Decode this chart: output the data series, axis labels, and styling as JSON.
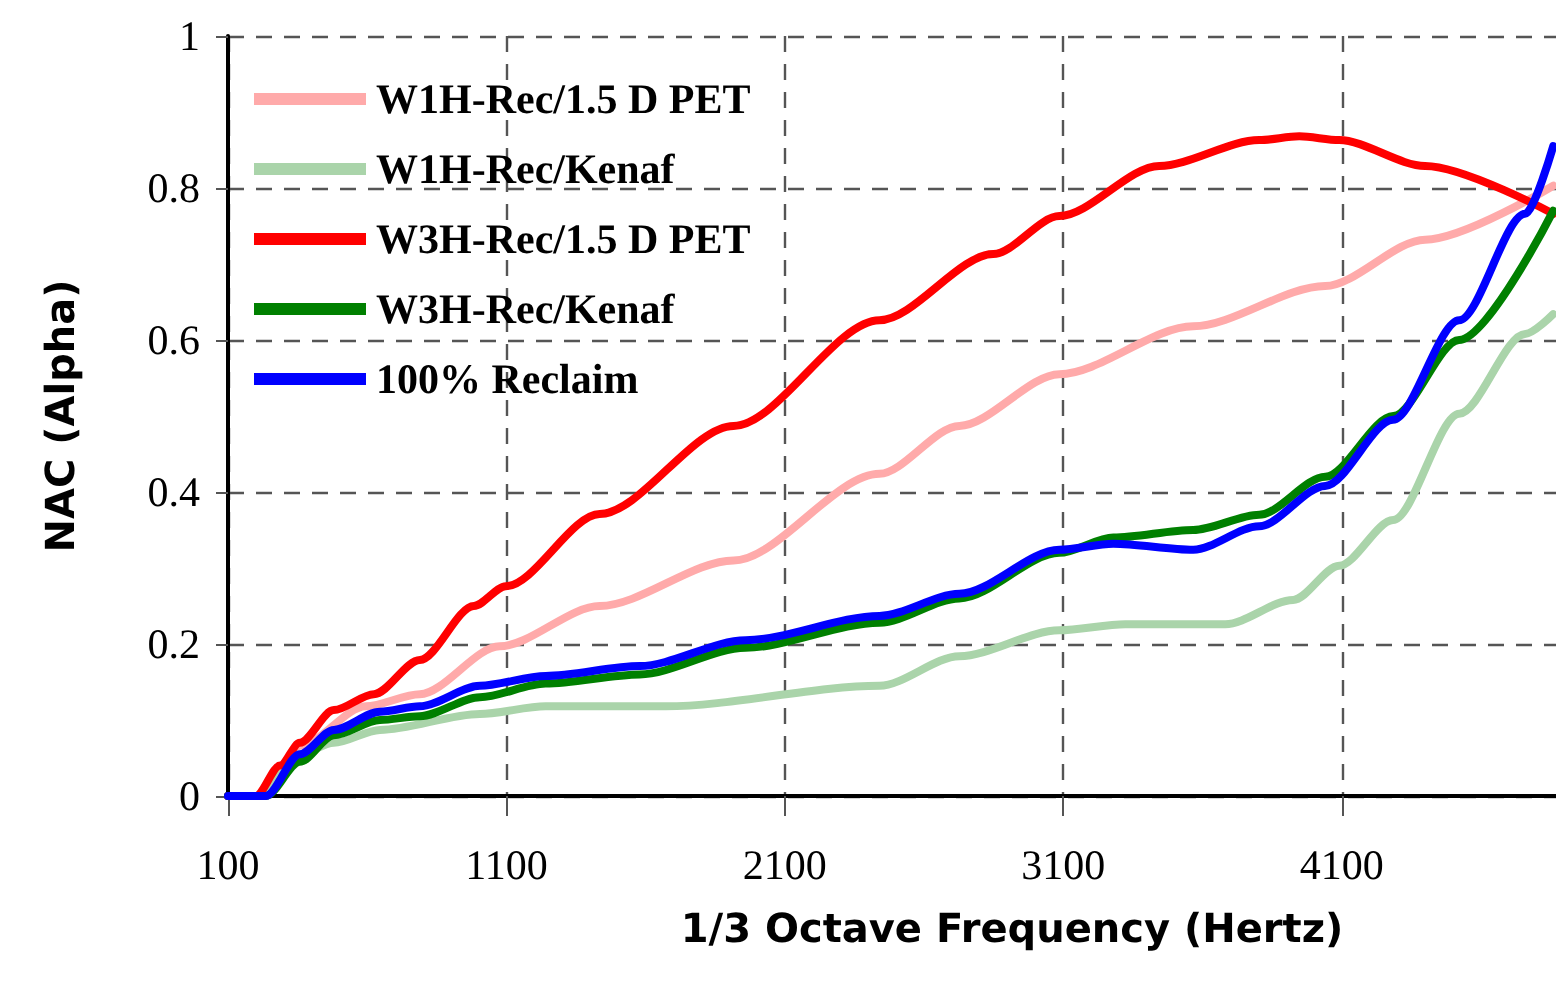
{
  "chart_data": {
    "type": "line",
    "xlabel": "1/3 Octave Frequency (Hertz)",
    "ylabel": "NAC (Alpha)",
    "xlim": [
      100,
      4870
    ],
    "xticks": [
      100,
      1100,
      2100,
      3100,
      4100
    ],
    "ylim": [
      0,
      1
    ],
    "yticks": [
      0,
      0.2,
      0.4,
      0.6,
      0.8,
      1
    ],
    "grid": true,
    "legend": "top left",
    "marker": "none",
    "line_style": "solid",
    "series": [
      {
        "name": "W1H-Rec/1.5 D PET",
        "color": "#ffaaaa",
        "x": [
          100,
          200,
          287,
          358,
          595,
          789,
          1076,
          1435,
          1916,
          2440,
          2727,
          3086,
          3567,
          4041,
          4400,
          4860
        ],
        "values": [
          0,
          0,
          0.03,
          0.066,
          0.118,
          0.134,
          0.197,
          0.25,
          0.31,
          0.424,
          0.487,
          0.555,
          0.618,
          0.671,
          0.732,
          0.803
        ]
      },
      {
        "name": "W1H-Rec/Kenaf",
        "color": "#aad4aa",
        "x": [
          100,
          200,
          287,
          358,
          480,
          646,
          1005,
          1241,
          1672,
          2440,
          2727,
          3086,
          3323,
          3682,
          3926,
          4091,
          4285,
          4522,
          4759,
          4860
        ],
        "values": [
          0,
          0,
          0.03,
          0.055,
          0.07,
          0.087,
          0.108,
          0.118,
          0.118,
          0.145,
          0.184,
          0.218,
          0.226,
          0.226,
          0.258,
          0.303,
          0.363,
          0.503,
          0.608,
          0.634
        ]
      },
      {
        "name": "W3H-Rec/1.5 D PET",
        "color": "#ff0000",
        "x": [
          100,
          200,
          287,
          358,
          480,
          624,
          789,
          983,
          1098,
          1435,
          1916,
          2440,
          2849,
          3086,
          3445,
          3804,
          3948,
          4091,
          4400,
          4860
        ],
        "values": [
          0,
          0,
          0.04,
          0.07,
          0.113,
          0.134,
          0.179,
          0.25,
          0.276,
          0.371,
          0.487,
          0.626,
          0.713,
          0.763,
          0.829,
          0.863,
          0.868,
          0.863,
          0.829,
          0.766
        ]
      },
      {
        "name": "W3H-Rec/Kenaf",
        "color": "#008000",
        "x": [
          100,
          179,
          236,
          358,
          480,
          646,
          789,
          1005,
          1241,
          1579,
          1959,
          2440,
          2727,
          3086,
          3280,
          3567,
          3804,
          4041,
          4285,
          4522,
          4860
        ],
        "values": [
          0,
          0,
          0,
          0.045,
          0.08,
          0.1,
          0.105,
          0.13,
          0.148,
          0.16,
          0.195,
          0.228,
          0.26,
          0.32,
          0.34,
          0.35,
          0.37,
          0.42,
          0.5,
          0.6,
          0.77
        ]
      },
      {
        "name": "100% Reclaim",
        "color": "#0000ff",
        "x": [
          100,
          179,
          236,
          358,
          480,
          646,
          789,
          1005,
          1241,
          1579,
          1959,
          2440,
          2727,
          3086,
          3280,
          3567,
          3804,
          4041,
          4285,
          4522,
          4759,
          4860
        ],
        "values": [
          0,
          0,
          0,
          0.055,
          0.087,
          0.111,
          0.118,
          0.145,
          0.158,
          0.171,
          0.205,
          0.237,
          0.266,
          0.324,
          0.332,
          0.324,
          0.355,
          0.408,
          0.495,
          0.626,
          0.766,
          0.855
        ]
      }
    ]
  }
}
